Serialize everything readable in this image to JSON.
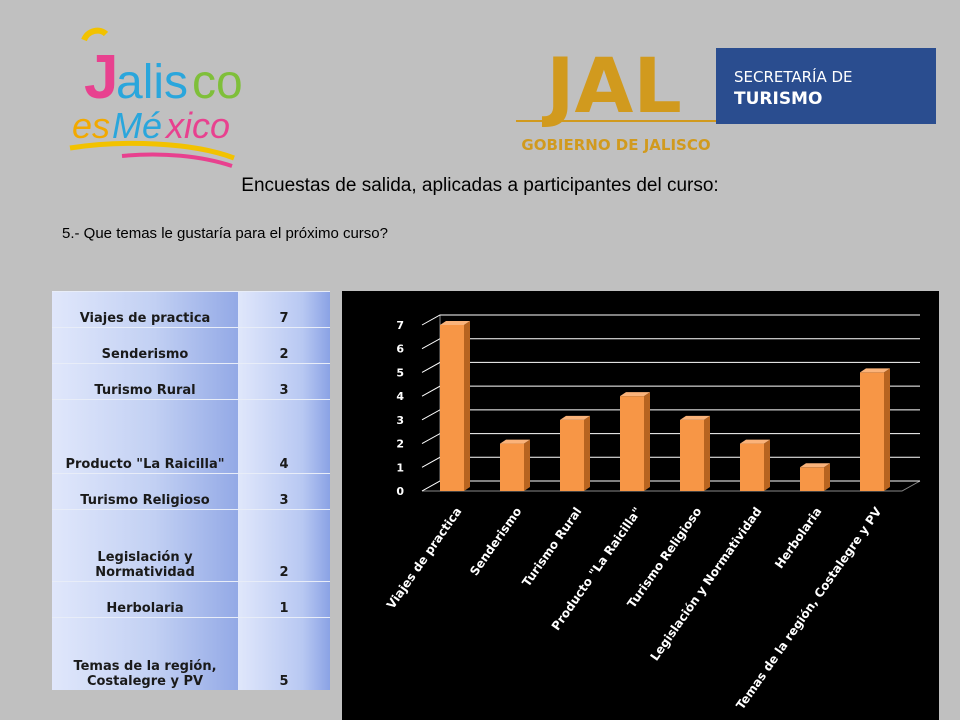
{
  "logos": {
    "left": {
      "line1": "Jalisco",
      "line2": "esMéxico"
    },
    "right": {
      "mark": "JAL",
      "department_line1": "SECRETARÍA DE",
      "department_line2": "TURISMO",
      "government": "GOBIERNO DE JALISCO"
    }
  },
  "title": "Encuestas de salida, aplicadas a  participantes del curso:",
  "question": "5.- Que temas le gustaría para el próximo curso?",
  "table": {
    "rows": [
      {
        "label": "Viajes de practica",
        "value": "7"
      },
      {
        "label": "Senderismo",
        "value": "2"
      },
      {
        "label": "Turismo Rural",
        "value": "3"
      },
      {
        "label": "Producto \"La Raicilla\"",
        "value": "4"
      },
      {
        "label": "Turismo Religioso",
        "value": "3"
      },
      {
        "label": "Legislación y Normatividad",
        "value": "2"
      },
      {
        "label": "Herbolaria",
        "value": "1"
      },
      {
        "label": "Temas de la región, Costalegre y PV",
        "value": "5"
      }
    ]
  },
  "colors": {
    "bar": "#f79646",
    "bar_side": "#b86420",
    "bar_top": "#fbb37a",
    "chart_bg": "#000000",
    "gridline": "#ffffff",
    "page_bg": "#c0c0c0"
  },
  "chart_data": {
    "type": "bar",
    "style": "3d-column",
    "categories": [
      "Viajes de practica",
      "Senderismo",
      "Turismo Rural",
      "Producto \"La Raicilla\"",
      "Turismo Religioso",
      "Legislación y Normatividad",
      "Herbolaria",
      "Temas de la región, Costalegre y PV"
    ],
    "values": [
      7,
      2,
      3,
      4,
      3,
      2,
      1,
      5
    ],
    "ylim": [
      0,
      7
    ],
    "yticks": [
      "0",
      "1",
      "2",
      "3",
      "4",
      "5",
      "6",
      "7"
    ],
    "grid": true,
    "legend": "none",
    "title": "",
    "xlabel": "",
    "ylabel": ""
  }
}
